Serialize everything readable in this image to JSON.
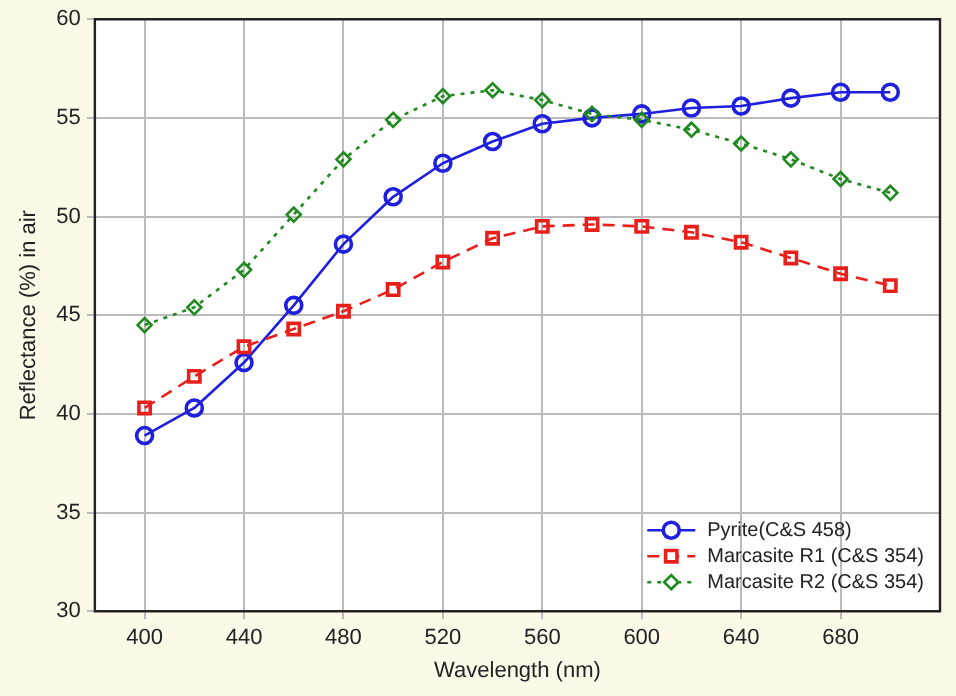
{
  "chart_data": {
    "type": "line",
    "xlabel": "Wavelength (nm)",
    "ylabel": "Reflectance (%) in air",
    "x": [
      400,
      420,
      440,
      460,
      480,
      500,
      520,
      540,
      560,
      580,
      600,
      620,
      640,
      660,
      680,
      700
    ],
    "xlim": [
      380,
      720
    ],
    "xticks": [
      400,
      440,
      480,
      520,
      560,
      600,
      640,
      680
    ],
    "ylim": [
      30,
      60
    ],
    "yticks": [
      30,
      35,
      40,
      45,
      50,
      55,
      60
    ],
    "grid": true,
    "legend": "bottom right",
    "series": [
      {
        "name": "Pyrite(C&S 458)",
        "color": "#1f1fe0",
        "marker": "circle",
        "line_style": "solid",
        "values": [
          38.9,
          40.3,
          42.6,
          45.5,
          48.6,
          51.0,
          52.7,
          53.8,
          54.7,
          55.0,
          55.2,
          55.5,
          55.6,
          56.0,
          56.3,
          56.3
        ]
      },
      {
        "name": "Marcasite R1 (C&S 354)",
        "color": "#e8201c",
        "marker": "square",
        "line_style": "dashed",
        "values": [
          40.3,
          41.9,
          43.4,
          44.3,
          45.2,
          46.3,
          47.7,
          48.9,
          49.5,
          49.6,
          49.5,
          49.2,
          48.7,
          47.9,
          47.1,
          46.5
        ]
      },
      {
        "name": "Marcasite R2 (C&S 354)",
        "color": "#1e8a1e",
        "marker": "diamond",
        "line_style": "dotted",
        "values": [
          44.5,
          45.4,
          47.3,
          50.1,
          52.9,
          54.9,
          56.1,
          56.4,
          55.9,
          55.2,
          54.9,
          54.4,
          53.7,
          52.9,
          51.9,
          51.2
        ]
      }
    ]
  }
}
